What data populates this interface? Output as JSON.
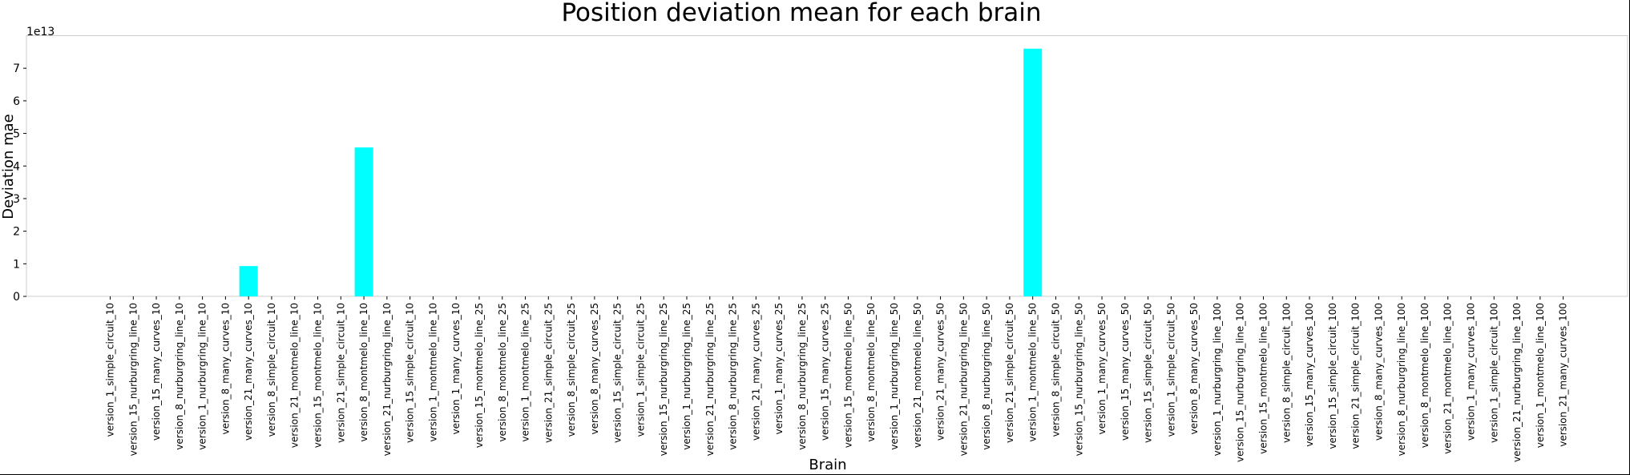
{
  "chart_data": {
    "type": "bar",
    "title": "Position deviation mean for each brain",
    "xlabel": "Brain",
    "ylabel": "Deviation mae",
    "y_offset_label": "1e13",
    "ylim": [
      0,
      8.0
    ],
    "y_scale_note": "values in units of 1e13",
    "yticks": [
      0,
      1,
      2,
      3,
      4,
      5,
      6,
      7
    ],
    "grid": false,
    "bar_color": "#00FFFF",
    "categories": [
      "version_1_simple_circuit_10",
      "version_15_nurburgring_line_10",
      "version_15_many_curves_10",
      "version_8_nurburgring_line_10",
      "version_1_nurburgring_line_10",
      "version_8_many_curves_10",
      "version_21_many_curves_10",
      "version_8_simple_circuit_10",
      "version_21_montmelo_line_10",
      "version_15_montmelo_line_10",
      "version_21_simple_circuit_10",
      "version_8_montmelo_line_10",
      "version_21_nurburgring_line_10",
      "version_15_simple_circuit_10",
      "version_1_montmelo_line_10",
      "version_1_many_curves_10",
      "version_15_montmelo_line_25",
      "version_8_montmelo_line_25",
      "version_1_montmelo_line_25",
      "version_21_simple_circuit_25",
      "version_8_simple_circuit_25",
      "version_8_many_curves_25",
      "version_15_simple_circuit_25",
      "version_1_simple_circuit_25",
      "version_15_nurburgring_line_25",
      "version_1_nurburgring_line_25",
      "version_21_nurburgring_line_25",
      "version_8_nurburgring_line_25",
      "version_21_many_curves_25",
      "version_1_many_curves_25",
      "version_8_nurburgring_line_25",
      "version_15_many_curves_25",
      "version_15_montmelo_line_50",
      "version_8_montmelo_line_50",
      "version_1_nurburgring_line_50",
      "version_21_montmelo_line_50",
      "version_21_many_curves_50",
      "version_21_nurburgring_line_50",
      "version_8_nurburgring_line_50",
      "version_21_simple_circuit_50",
      "version_1_montmelo_line_50",
      "version_8_simple_circuit_50",
      "version_15_nurburgring_line_50",
      "version_1_many_curves_50",
      "version_15_many_curves_50",
      "version_15_simple_circuit_50",
      "version_1_simple_circuit_50",
      "version_8_many_curves_50",
      "version_1_nurburgring_line_100",
      "version_15_nurburgring_line_100",
      "version_15_montmelo_line_100",
      "version_8_simple_circuit_100",
      "version_15_many_curves_100",
      "version_15_simple_circuit_100",
      "version_21_simple_circuit_100",
      "version_8_many_curves_100",
      "version_8_nurburgring_line_100",
      "version_8_montmelo_line_100",
      "version_21_montmelo_line_100",
      "version_1_many_curves_100",
      "version_1_simple_circuit_100",
      "version_21_nurburgring_line_100",
      "version_1_montmelo_line_100",
      "version_21_many_curves_100"
    ],
    "values": [
      0,
      0,
      0,
      0,
      0,
      0,
      0.93,
      0,
      0,
      0,
      0,
      4.57,
      0,
      0,
      0,
      0,
      0,
      0,
      0,
      0,
      0,
      0,
      0,
      0,
      0,
      0,
      0,
      0,
      0,
      0,
      0,
      0,
      0,
      0,
      0,
      0,
      0,
      0,
      0,
      0,
      7.6,
      0,
      0,
      0,
      0,
      0,
      0,
      0,
      0,
      0,
      0,
      0,
      0,
      0,
      0,
      0,
      0,
      0,
      0,
      0,
      0,
      0,
      0,
      0
    ]
  }
}
